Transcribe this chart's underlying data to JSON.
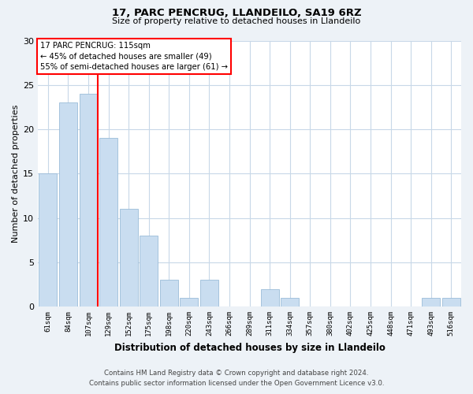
{
  "title1": "17, PARC PENCRUG, LLANDEILO, SA19 6RZ",
  "title2": "Size of property relative to detached houses in Llandeilo",
  "xlabel": "Distribution of detached houses by size in Llandeilo",
  "ylabel": "Number of detached properties",
  "categories": [
    "61sqm",
    "84sqm",
    "107sqm",
    "129sqm",
    "152sqm",
    "175sqm",
    "198sqm",
    "220sqm",
    "243sqm",
    "266sqm",
    "289sqm",
    "311sqm",
    "334sqm",
    "357sqm",
    "380sqm",
    "402sqm",
    "425sqm",
    "448sqm",
    "471sqm",
    "493sqm",
    "516sqm"
  ],
  "values": [
    15,
    23,
    24,
    19,
    11,
    8,
    3,
    1,
    3,
    0,
    0,
    2,
    1,
    0,
    0,
    0,
    0,
    0,
    0,
    1,
    1
  ],
  "bar_color": "#c9ddf0",
  "bar_edgecolor": "#9bbcd8",
  "redline_index": 2,
  "annotation_line1": "17 PARC PENCRUG: 115sqm",
  "annotation_line2": "← 45% of detached houses are smaller (49)",
  "annotation_line3": "55% of semi-detached houses are larger (61) →",
  "ylim": [
    0,
    30
  ],
  "yticks": [
    0,
    5,
    10,
    15,
    20,
    25,
    30
  ],
  "footnote1": "Contains HM Land Registry data © Crown copyright and database right 2024.",
  "footnote2": "Contains public sector information licensed under the Open Government Licence v3.0.",
  "bg_color": "#edf2f7",
  "plot_bg_color": "#ffffff",
  "grid_color": "#c8d8e8"
}
